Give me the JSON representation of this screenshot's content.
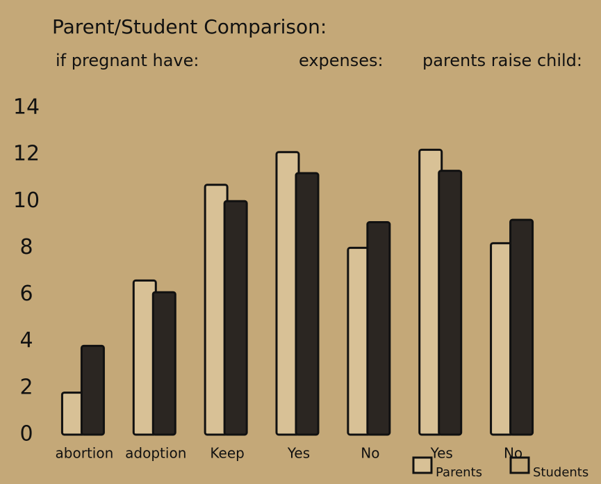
{
  "chart_data": {
    "type": "bar",
    "title": "Parent/Student Comparison:",
    "group_labels": [
      "if pregnant have:",
      "expenses:",
      "parents raise child:"
    ],
    "categories": [
      "abortion",
      "adoption",
      "Keep",
      "Yes",
      "No",
      "Yes",
      "No"
    ],
    "series": [
      {
        "name": "Parents",
        "color": "#d8c196",
        "values": [
          1.8,
          6.6,
          10.7,
          12.1,
          8.0,
          12.2,
          8.2
        ]
      },
      {
        "name": "Students",
        "color": "#2b2622",
        "values": [
          3.8,
          6.1,
          10.0,
          11.2,
          9.1,
          11.3,
          9.2
        ]
      }
    ],
    "ylim": [
      0,
      14
    ],
    "yticks": [
      0,
      2,
      4,
      6,
      8,
      10,
      12,
      14
    ],
    "grid": false
  }
}
